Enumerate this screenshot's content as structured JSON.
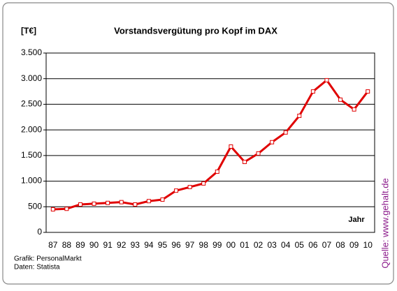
{
  "chart_data": {
    "type": "line",
    "title": "Vorstandsvergütung pro Kopf im DAX",
    "y_label": "[T€]",
    "x_label": "Jahr",
    "credits": [
      "Grafik: PersonalMarkt",
      "Daten: Statista"
    ],
    "source": "Quelle: www.gehalt.de",
    "categories": [
      "87",
      "88",
      "89",
      "90",
      "91",
      "92",
      "93",
      "94",
      "95",
      "96",
      "97",
      "98",
      "99",
      "00",
      "01",
      "02",
      "03",
      "04",
      "05",
      "06",
      "07",
      "08",
      "09",
      "10"
    ],
    "series": [
      {
        "color": "#e00000",
        "values": [
          450,
          460,
          545,
          560,
          575,
          590,
          545,
          610,
          640,
          815,
          885,
          955,
          1185,
          1675,
          1375,
          1540,
          1760,
          1950,
          2275,
          2750,
          2970,
          2590,
          2400,
          2750
        ]
      }
    ],
    "ylim": [
      0,
      3500
    ],
    "yticks": [
      0,
      500,
      {
        "value": 1000,
        "label": "1.000"
      },
      {
        "value": 1500,
        "label": "1.500"
      },
      {
        "value": 2000,
        "label": "2.000"
      },
      {
        "value": 2500,
        "label": "2.500"
      },
      {
        "value": 3000,
        "label": "3.000"
      },
      {
        "value": 3500,
        "label": "3.500"
      }
    ],
    "grid": true
  }
}
